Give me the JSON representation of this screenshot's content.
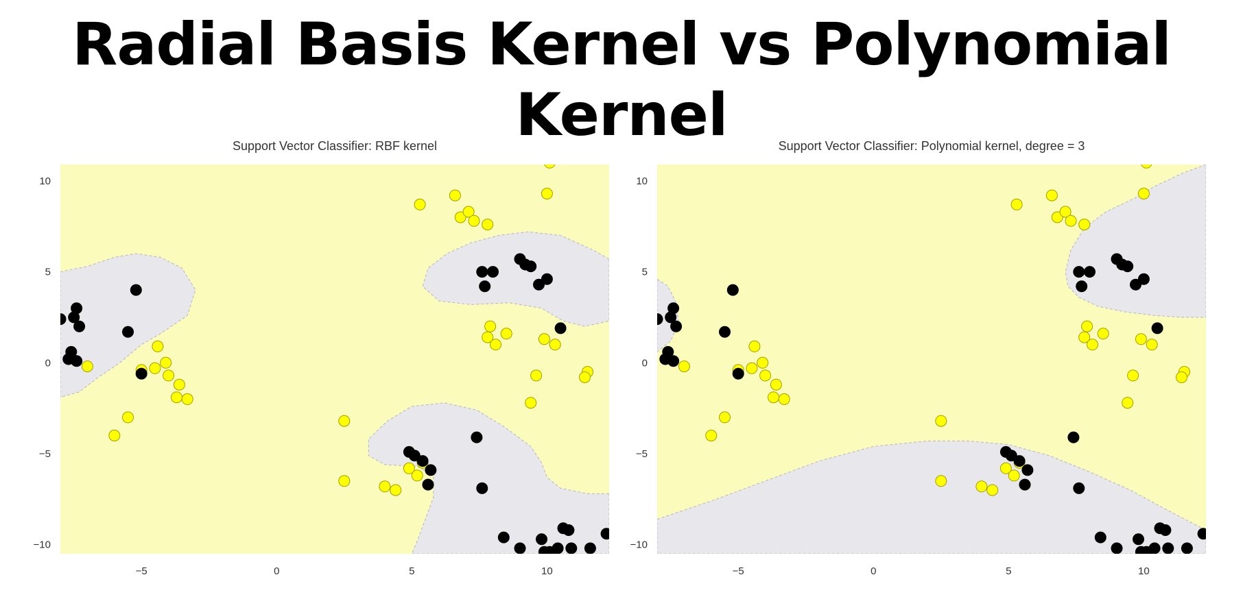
{
  "slide": {
    "title": "Radial Basis Kernel vs Polynomial Kernel"
  },
  "colors": {
    "class_a_region": "#fbfbbb",
    "class_b_region": "#e8e8ec",
    "class_a_point": "#ffff00",
    "class_a_point_edge": "#a0a000",
    "class_b_point": "#000000",
    "tick_text": "#333333"
  },
  "chart_data": [
    {
      "type": "scatter",
      "title": "Support Vector Classifier: RBF kernel",
      "xlabel": "",
      "ylabel": "",
      "xlim": [
        -8,
        12.3
      ],
      "ylim": [
        -10.5,
        10.9
      ],
      "xticks": [
        -5,
        0,
        5,
        10
      ],
      "yticks": [
        10,
        5,
        0,
        -5,
        -10
      ],
      "grid": false,
      "decision_regions": [
        {
          "class": "black",
          "polygon": [
            [
              -8,
              5
            ],
            [
              -7,
              5.3
            ],
            [
              -6,
              5.8
            ],
            [
              -5.2,
              6
            ],
            [
              -4.3,
              5.8
            ],
            [
              -3.5,
              5.2
            ],
            [
              -3,
              4
            ],
            [
              -3.3,
              2.6
            ],
            [
              -4.3,
              1.6
            ],
            [
              -5,
              1
            ],
            [
              -5.8,
              0
            ],
            [
              -6.6,
              -0.8
            ],
            [
              -7.3,
              -1.6
            ],
            [
              -8,
              -1.9
            ]
          ]
        },
        {
          "class": "black",
          "polygon": [
            [
              12.3,
              5.7
            ],
            [
              11.7,
              6.2
            ],
            [
              10.5,
              7
            ],
            [
              9.3,
              7.2
            ],
            [
              8.2,
              7
            ],
            [
              7.2,
              6.6
            ],
            [
              6.3,
              6
            ],
            [
              5.6,
              5.2
            ],
            [
              5.4,
              4.2
            ],
            [
              6,
              3.4
            ],
            [
              7.2,
              3.2
            ],
            [
              8.6,
              3.3
            ],
            [
              9.8,
              3
            ],
            [
              10.6,
              2.3
            ],
            [
              11.4,
              2
            ],
            [
              12.3,
              2.3
            ]
          ]
        },
        {
          "class": "black",
          "polygon": [
            [
              12.3,
              -7.2
            ],
            [
              11.5,
              -7.2
            ],
            [
              10.5,
              -6.9
            ],
            [
              10,
              -6.3
            ],
            [
              9.8,
              -5.5
            ],
            [
              9.4,
              -4.6
            ],
            [
              8.4,
              -3.5
            ],
            [
              7.4,
              -2.6
            ],
            [
              6.2,
              -2.2
            ],
            [
              5,
              -2.4
            ],
            [
              4.1,
              -3.2
            ],
            [
              3.4,
              -4.2
            ],
            [
              3.4,
              -5.1
            ],
            [
              4,
              -5.6
            ],
            [
              5.2,
              -5.7
            ],
            [
              5.8,
              -6.2
            ],
            [
              5.8,
              -7.4
            ],
            [
              5.5,
              -8.6
            ],
            [
              5.2,
              -9.8
            ],
            [
              5,
              -10.5
            ],
            [
              12.3,
              -10.5
            ]
          ]
        }
      ],
      "series": [
        {
          "class": "yellow",
          "points": [
            [
              -7,
              -0.2
            ],
            [
              -6,
              -4
            ],
            [
              -5.5,
              -3
            ],
            [
              -5,
              -0.4
            ],
            [
              -4.5,
              -0.3
            ],
            [
              -4.4,
              0.9
            ],
            [
              -4.1,
              0
            ],
            [
              -4,
              -0.7
            ],
            [
              -3.6,
              -1.2
            ],
            [
              -3.7,
              -1.9
            ],
            [
              -3.3,
              -2
            ],
            [
              2.5,
              -3.2
            ],
            [
              2.5,
              -6.5
            ],
            [
              4,
              -6.8
            ],
            [
              4.4,
              -7
            ],
            [
              4.9,
              -5.8
            ],
            [
              5.2,
              -6.2
            ],
            [
              5.4,
              -5.5
            ],
            [
              5.6,
              -6.7
            ],
            [
              5.3,
              8.7
            ],
            [
              6.6,
              9.2
            ],
            [
              6.8,
              8
            ],
            [
              7.1,
              8.3
            ],
            [
              7.3,
              7.8
            ],
            [
              7.8,
              7.6
            ],
            [
              7.9,
              2
            ],
            [
              7.8,
              1.4
            ],
            [
              8.1,
              1
            ],
            [
              8.5,
              1.6
            ],
            [
              9.4,
              -2.2
            ],
            [
              9.6,
              -0.7
            ],
            [
              9.9,
              1.3
            ],
            [
              10,
              9.3
            ],
            [
              10.1,
              11
            ],
            [
              10.3,
              1
            ],
            [
              11.5,
              -0.5
            ],
            [
              11.4,
              -0.8
            ]
          ]
        },
        {
          "class": "black",
          "points": [
            [
              -8,
              2.4
            ],
            [
              -7.4,
              3
            ],
            [
              -7.5,
              2.5
            ],
            [
              -7.3,
              2
            ],
            [
              -7.6,
              0.6
            ],
            [
              -7.7,
              0.2
            ],
            [
              -7.4,
              0.1
            ],
            [
              -5.2,
              4
            ],
            [
              -5.5,
              1.7
            ],
            [
              -5,
              -0.6
            ],
            [
              4.9,
              -4.9
            ],
            [
              5.1,
              -5.1
            ],
            [
              5.4,
              -5.4
            ],
            [
              5.7,
              -5.9
            ],
            [
              5.6,
              -6.7
            ],
            [
              7.4,
              -4.1
            ],
            [
              7.6,
              -6.9
            ],
            [
              7.6,
              5
            ],
            [
              7.7,
              4.2
            ],
            [
              8,
              5
            ],
            [
              8.4,
              -9.6
            ],
            [
              9,
              -10.2
            ],
            [
              9,
              5.7
            ],
            [
              9.2,
              5.4
            ],
            [
              9.4,
              5.3
            ],
            [
              9.7,
              4.3
            ],
            [
              9.8,
              -9.7
            ],
            [
              9.9,
              -10.4
            ],
            [
              10.1,
              -10.4
            ],
            [
              10,
              4.6
            ],
            [
              10.4,
              -10.2
            ],
            [
              10.5,
              1.9
            ],
            [
              10.6,
              -9.1
            ],
            [
              10.8,
              -9.2
            ],
            [
              10.9,
              -10.2
            ],
            [
              11.6,
              -10.2
            ],
            [
              12.2,
              -9.4
            ]
          ]
        }
      ]
    },
    {
      "type": "scatter",
      "title": "Support Vector Classifier: Polynomial kernel, degree = 3",
      "xlabel": "",
      "ylabel": "",
      "xlim": [
        -8,
        12.3
      ],
      "ylim": [
        -10.5,
        10.9
      ],
      "xticks": [
        -5,
        0,
        5,
        10
      ],
      "yticks": [
        10,
        5,
        0,
        -5,
        -10
      ],
      "grid": false,
      "decision_regions": [
        {
          "class": "black",
          "polygon": [
            [
              -8,
              4.6
            ],
            [
              -7.6,
              4.2
            ],
            [
              -7.3,
              3.3
            ],
            [
              -7.2,
              2.2
            ],
            [
              -7.5,
              1.2
            ],
            [
              -8,
              0.6
            ]
          ]
        },
        {
          "class": "black",
          "polygon": [
            [
              12.3,
              10.9
            ],
            [
              11.4,
              10.4
            ],
            [
              10.4,
              9.7
            ],
            [
              9.6,
              9
            ],
            [
              8.6,
              8.3
            ],
            [
              7.8,
              7.4
            ],
            [
              7.3,
              6.2
            ],
            [
              7.1,
              5
            ],
            [
              7.2,
              4.2
            ],
            [
              7.6,
              3.6
            ],
            [
              8.3,
              3.1
            ],
            [
              9.3,
              2.8
            ],
            [
              10.4,
              2.6
            ],
            [
              11.4,
              2.5
            ],
            [
              12.3,
              2.5
            ]
          ]
        },
        {
          "class": "black",
          "polygon": [
            [
              -8,
              -8.6
            ],
            [
              -6,
              -7.6
            ],
            [
              -4,
              -6.5
            ],
            [
              -2,
              -5.4
            ],
            [
              0,
              -4.6
            ],
            [
              2,
              -4.3
            ],
            [
              3.5,
              -4.3
            ],
            [
              5,
              -4.5
            ],
            [
              6.5,
              -5.1
            ],
            [
              8,
              -6
            ],
            [
              9.5,
              -7
            ],
            [
              11,
              -8.2
            ],
            [
              12.3,
              -9.2
            ],
            [
              12.3,
              -10.5
            ],
            [
              -8,
              -10.5
            ]
          ]
        }
      ],
      "series": [
        {
          "class": "yellow",
          "points": [
            [
              -7,
              -0.2
            ],
            [
              -6,
              -4
            ],
            [
              -5.5,
              -3
            ],
            [
              -5,
              -0.4
            ],
            [
              -4.5,
              -0.3
            ],
            [
              -4.4,
              0.9
            ],
            [
              -4.1,
              0
            ],
            [
              -4,
              -0.7
            ],
            [
              -3.6,
              -1.2
            ],
            [
              -3.7,
              -1.9
            ],
            [
              -3.3,
              -2
            ],
            [
              2.5,
              -3.2
            ],
            [
              2.5,
              -6.5
            ],
            [
              4,
              -6.8
            ],
            [
              4.4,
              -7
            ],
            [
              4.9,
              -5.8
            ],
            [
              5.2,
              -6.2
            ],
            [
              5.4,
              -5.5
            ],
            [
              5.6,
              -6.7
            ],
            [
              5.3,
              8.7
            ],
            [
              6.6,
              9.2
            ],
            [
              6.8,
              8
            ],
            [
              7.1,
              8.3
            ],
            [
              7.3,
              7.8
            ],
            [
              7.8,
              7.6
            ],
            [
              7.9,
              2
            ],
            [
              7.8,
              1.4
            ],
            [
              8.1,
              1
            ],
            [
              8.5,
              1.6
            ],
            [
              9.4,
              -2.2
            ],
            [
              9.6,
              -0.7
            ],
            [
              9.9,
              1.3
            ],
            [
              10,
              9.3
            ],
            [
              10.1,
              11
            ],
            [
              10.3,
              1
            ],
            [
              11.5,
              -0.5
            ],
            [
              11.4,
              -0.8
            ]
          ]
        },
        {
          "class": "black",
          "points": [
            [
              -8,
              2.4
            ],
            [
              -7.4,
              3
            ],
            [
              -7.5,
              2.5
            ],
            [
              -7.3,
              2
            ],
            [
              -7.6,
              0.6
            ],
            [
              -7.7,
              0.2
            ],
            [
              -7.4,
              0.1
            ],
            [
              -5.2,
              4
            ],
            [
              -5.5,
              1.7
            ],
            [
              -5,
              -0.6
            ],
            [
              4.9,
              -4.9
            ],
            [
              5.1,
              -5.1
            ],
            [
              5.4,
              -5.4
            ],
            [
              5.7,
              -5.9
            ],
            [
              5.6,
              -6.7
            ],
            [
              7.4,
              -4.1
            ],
            [
              7.6,
              -6.9
            ],
            [
              7.6,
              5
            ],
            [
              7.7,
              4.2
            ],
            [
              8,
              5
            ],
            [
              8.4,
              -9.6
            ],
            [
              9,
              -10.2
            ],
            [
              9,
              5.7
            ],
            [
              9.2,
              5.4
            ],
            [
              9.4,
              5.3
            ],
            [
              9.7,
              4.3
            ],
            [
              9.8,
              -9.7
            ],
            [
              9.9,
              -10.4
            ],
            [
              10.1,
              -10.4
            ],
            [
              10,
              4.6
            ],
            [
              10.4,
              -10.2
            ],
            [
              10.5,
              1.9
            ],
            [
              10.6,
              -9.1
            ],
            [
              10.8,
              -9.2
            ],
            [
              10.9,
              -10.2
            ],
            [
              11.6,
              -10.2
            ],
            [
              12.2,
              -9.4
            ]
          ]
        }
      ]
    }
  ]
}
